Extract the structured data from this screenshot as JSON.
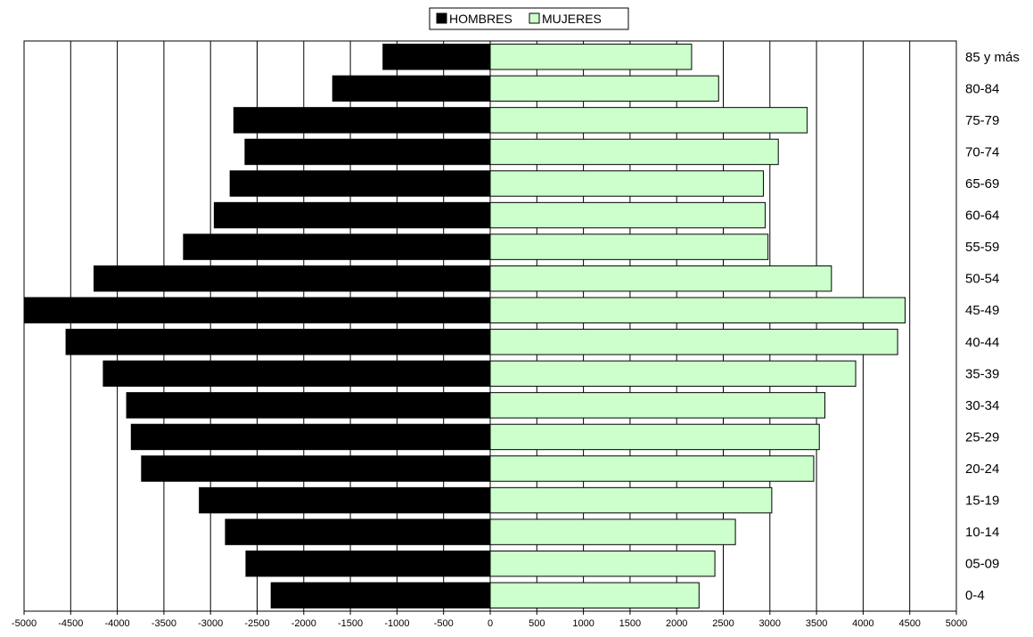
{
  "chart_data": {
    "type": "bar",
    "orientation": "horizontal",
    "subtype": "population-pyramid",
    "categories": [
      "0-4",
      "05-09",
      "10-14",
      "15-19",
      "20-24",
      "25-29",
      "30-34",
      "35-39",
      "40-44",
      "45-49",
      "50-54",
      "55-59",
      "60-64",
      "65-69",
      "70-74",
      "75-79",
      "80-84",
      "85 y más"
    ],
    "series": [
      {
        "name": "HOMBRES",
        "color": "#000000",
        "values": [
          -2350,
          -2620,
          -2840,
          -3120,
          -3740,
          -3850,
          -3900,
          -4150,
          -4550,
          -5000,
          -4250,
          -3290,
          -2960,
          -2790,
          -2630,
          -2750,
          -1690,
          -1150
        ]
      },
      {
        "name": "MUJERES",
        "color": "#ccffcc",
        "values": [
          2240,
          2410,
          2630,
          3020,
          3470,
          3530,
          3590,
          3920,
          4370,
          4450,
          3660,
          2980,
          2950,
          2930,
          3090,
          3400,
          2450,
          2160
        ]
      }
    ],
    "xlim": [
      -5000,
      5000
    ],
    "x_ticks": [
      "-5000",
      "-4500",
      "-4000",
      "-3500",
      "-3000",
      "-2500",
      "-2000",
      "-1500",
      "-1000",
      "-500",
      "0",
      "500",
      "1000",
      "1500",
      "2000",
      "2500",
      "3000",
      "3500",
      "4000",
      "4500",
      "5000"
    ],
    "grid": "vertical",
    "legend_position": "top-center",
    "category_axis_side": "right",
    "title": "",
    "xlabel": "",
    "ylabel": ""
  }
}
